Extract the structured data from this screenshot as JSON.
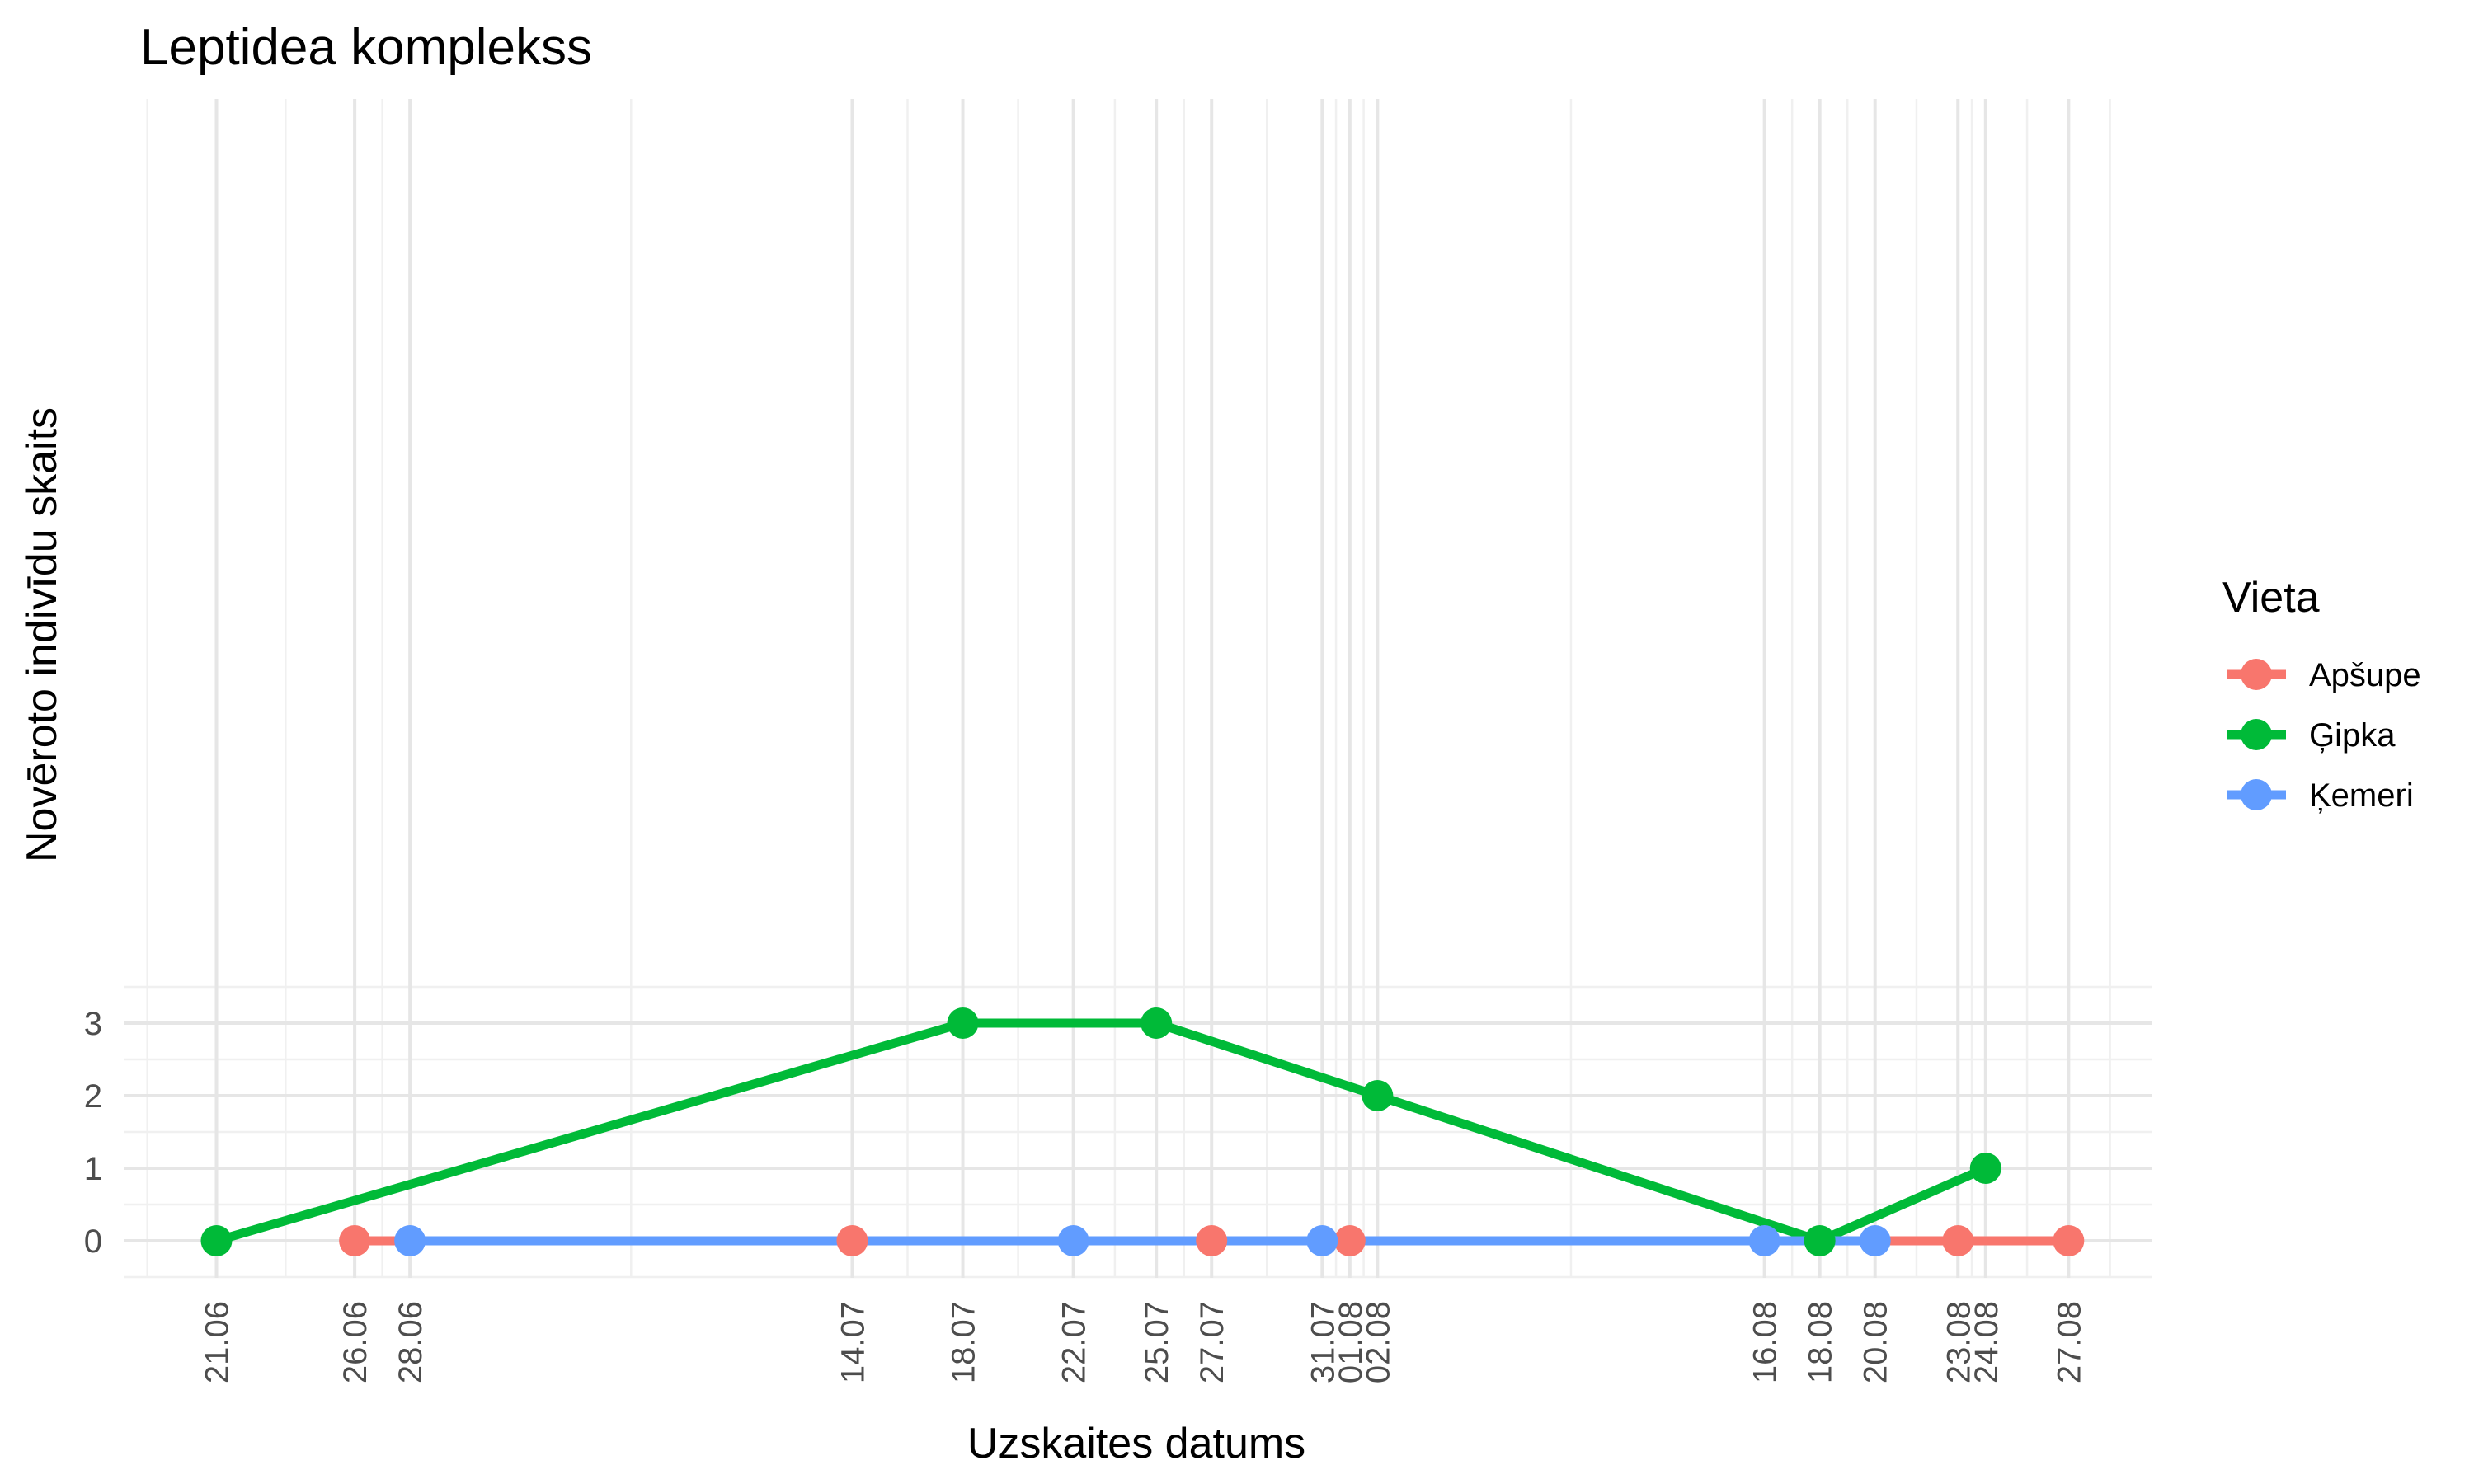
{
  "chart_data": {
    "type": "line",
    "title": "Leptidea komplekss",
    "xlabel": "Uzskaites datums",
    "ylabel": "Novēroto indivīdu skaits",
    "ylim": [
      -0.5,
      3.5
    ],
    "yticks": [
      0,
      1,
      2,
      3
    ],
    "xticks": [
      "21.06",
      "26.06",
      "28.06",
      "14.07",
      "18.07",
      "22.07",
      "25.07",
      "27.07",
      "31.07",
      "01.08",
      "02.08",
      "16.08",
      "18.08",
      "20.08",
      "23.08",
      "24.08",
      "27.08"
    ],
    "legend": {
      "title": "Vieta",
      "position": "right"
    },
    "grid": true,
    "series": [
      {
        "name": "Apšupe",
        "color": "#F8766D",
        "x": [
          "26.06",
          "14.07",
          "27.07",
          "01.08",
          "23.08",
          "27.08"
        ],
        "y": [
          0,
          0,
          0,
          0,
          0,
          0
        ]
      },
      {
        "name": "Ģipka",
        "color": "#00BA38",
        "x": [
          "21.06",
          "18.07",
          "25.07",
          "02.08",
          "18.08",
          "24.08"
        ],
        "y": [
          0,
          3,
          3,
          2,
          0,
          1
        ]
      },
      {
        "name": "Ķemeri",
        "color": "#619CFF",
        "x": [
          "28.06",
          "22.07",
          "31.07",
          "16.08",
          "20.08"
        ],
        "y": [
          0,
          0,
          0,
          0,
          0
        ]
      }
    ]
  }
}
